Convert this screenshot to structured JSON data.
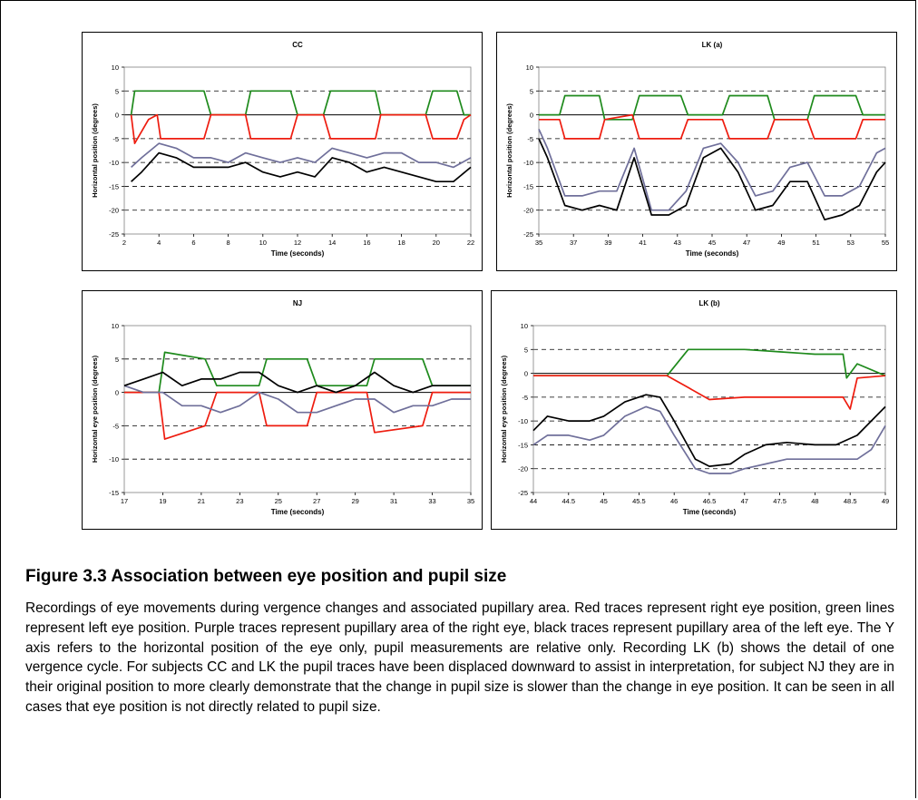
{
  "figure": {
    "title": "Figure 3.3  Association between eye position and pupil size",
    "caption": "Recordings of eye movements during vergence changes and associated pupillary area. Red traces represent right eye position, green lines represent left eye position. Purple traces represent pupillary area of the right eye, black traces represent pupillary area of the left eye. The Y axis refers to the horizontal position of the eye only, pupil measurements are relative only. Recording LK (b) shows the detail of one vergence cycle. For subjects CC and LK the pupil traces have been displaced downward to assist in interpretation, for subject NJ they are in their original position to more clearly demonstrate that the change in pupil size is slower than the change in eye position. It can be seen in all cases that eye position is not directly related to pupil size."
  },
  "colors": {
    "right_eye": "#ee1c0f",
    "left_eye": "#1e8a1c",
    "right_pupil": "#6f6f9a",
    "left_pupil": "#000000"
  },
  "chart_data": [
    {
      "type": "line",
      "title": "CC",
      "xlabel": "Time (seconds)",
      "ylabel": "Horizontal position (degrees)",
      "xlim": [
        2,
        22
      ],
      "ylim": [
        -25,
        10
      ],
      "xticks": [
        "2",
        "4",
        "6",
        "8",
        "10",
        "12",
        "14",
        "16",
        "18",
        "20",
        "22"
      ],
      "yticks": [
        "10",
        "5",
        "0",
        "-5",
        "-10",
        "-15",
        "-20",
        "-25"
      ],
      "grid": "dashed horizontal at 5, -5, -10, -15, -20; solid at 0",
      "series": [
        {
          "color": "#1e8a1c",
          "x": [
            2.4,
            2.6,
            3.2,
            3.8,
            4.0,
            6.6,
            7.0,
            9.0,
            9.3,
            11.6,
            12.0,
            13.5,
            13.9,
            16.5,
            16.8,
            19.4,
            19.8,
            21.2,
            21.6,
            22
          ],
          "y": [
            0,
            5,
            5,
            5,
            5,
            5,
            0,
            0,
            5,
            5,
            0,
            0,
            5,
            5,
            0,
            0,
            5,
            5,
            0,
            0
          ]
        },
        {
          "color": "#ee1c0f",
          "x": [
            2.4,
            2.6,
            3.4,
            3.9,
            4.1,
            6.6,
            7.0,
            9.0,
            9.3,
            11.6,
            12.0,
            13.5,
            13.9,
            16.5,
            16.8,
            19.4,
            19.8,
            21.2,
            21.6,
            22
          ],
          "y": [
            0,
            -6,
            -1,
            0,
            -5,
            -5,
            0,
            0,
            -5,
            -5,
            0,
            0,
            -5,
            -5,
            0,
            0,
            -5,
            -5,
            -1,
            0
          ]
        },
        {
          "color": "#6f6f9a",
          "x": [
            2.4,
            3.0,
            4.0,
            5.0,
            6.0,
            7.0,
            8.0,
            9.0,
            10.0,
            11.0,
            12.0,
            13.0,
            14.0,
            15.0,
            16.0,
            17.0,
            18.0,
            19.0,
            20.0,
            21.0,
            22.0
          ],
          "y": [
            -11,
            -9,
            -6,
            -7,
            -9,
            -9,
            -10,
            -8,
            -9,
            -10,
            -9,
            -10,
            -7,
            -8,
            -9,
            -8,
            -8,
            -10,
            -10,
            -11,
            -9
          ]
        },
        {
          "color": "#000000",
          "x": [
            2.4,
            3.0,
            4.0,
            5.0,
            6.0,
            7.0,
            8.0,
            9.0,
            10.0,
            11.0,
            12.0,
            13.0,
            14.0,
            15.0,
            16.0,
            17.0,
            18.0,
            19.0,
            20.0,
            21.0,
            22.0
          ],
          "y": [
            -14,
            -12,
            -8,
            -9,
            -11,
            -11,
            -11,
            -10,
            -12,
            -13,
            -12,
            -13,
            -9,
            -10,
            -12,
            -11,
            -12,
            -13,
            -14,
            -14,
            -11
          ]
        }
      ]
    },
    {
      "type": "line",
      "title": "LK  (a)",
      "xlabel": "Time (seconds)",
      "ylabel": "Horizontal position (degrees)",
      "xlim": [
        35,
        55
      ],
      "ylim": [
        -25,
        10
      ],
      "xticks": [
        "35",
        "37",
        "39",
        "41",
        "43",
        "45",
        "47",
        "49",
        "51",
        "53",
        "55"
      ],
      "yticks": [
        "10",
        "5",
        "0",
        "-5",
        "-10",
        "-15",
        "-20",
        "-25"
      ],
      "grid": "dashed horizontal at 5, -5, -10, -15, -20; solid at 0",
      "series": [
        {
          "color": "#1e8a1c",
          "x": [
            35,
            36.2,
            36.5,
            38.5,
            38.8,
            40.4,
            40.8,
            43.2,
            43.6,
            45.6,
            46.0,
            48.2,
            48.6,
            50.5,
            50.9,
            53.3,
            53.7,
            55
          ],
          "y": [
            0,
            0,
            4,
            4,
            -1,
            -1,
            4,
            4,
            0,
            0,
            4,
            4,
            -1,
            -1,
            4,
            4,
            0,
            0
          ]
        },
        {
          "color": "#ee1c0f",
          "x": [
            35,
            36.2,
            36.5,
            38.5,
            38.8,
            40.4,
            40.8,
            43.2,
            43.6,
            45.6,
            46.0,
            48.2,
            48.6,
            50.5,
            50.9,
            53.3,
            53.7,
            55
          ],
          "y": [
            -1,
            -1,
            -5,
            -5,
            -1,
            0,
            -5,
            -5,
            -1,
            -1,
            -5,
            -5,
            -1,
            -1,
            -5,
            -5,
            -1,
            -1
          ]
        },
        {
          "color": "#6f6f9a",
          "x": [
            35,
            35.5,
            36.5,
            37.5,
            38.5,
            39.5,
            40.5,
            41.5,
            42.5,
            43.5,
            44.5,
            45.5,
            46.5,
            47.5,
            48.5,
            49.5,
            50.5,
            51.5,
            52.5,
            53.5,
            54.5,
            55
          ],
          "y": [
            -3,
            -7,
            -17,
            -17,
            -16,
            -16,
            -7,
            -20,
            -20,
            -16,
            -7,
            -6,
            -10,
            -17,
            -16,
            -11,
            -10,
            -17,
            -17,
            -15,
            -8,
            -7
          ]
        },
        {
          "color": "#000000",
          "x": [
            35,
            35.5,
            36.5,
            37.5,
            38.5,
            39.5,
            40.5,
            41.5,
            42.5,
            43.5,
            44.5,
            45.5,
            46.5,
            47.5,
            48.5,
            49.5,
            50.5,
            51.5,
            52.5,
            53.5,
            54.5,
            55
          ],
          "y": [
            -5,
            -9,
            -19,
            -20,
            -19,
            -20,
            -9,
            -21,
            -21,
            -19,
            -9,
            -7,
            -12,
            -20,
            -19,
            -14,
            -14,
            -22,
            -21,
            -19,
            -12,
            -10
          ]
        }
      ]
    },
    {
      "type": "line",
      "title": "NJ",
      "xlabel": "Time (seconds)",
      "ylabel": "Horizontal eye position (degrees)",
      "xlim": [
        17,
        35
      ],
      "ylim": [
        -15,
        10
      ],
      "xticks": [
        "17",
        "19",
        "21",
        "23",
        "25",
        "27",
        "29",
        "31",
        "33",
        "35"
      ],
      "yticks": [
        "10",
        "5",
        "0",
        "-5",
        "-10",
        "-15"
      ],
      "grid": "dashed horizontal at 5, -5, -10; solid at 0",
      "series": [
        {
          "color": "#1e8a1c",
          "x": [
            17,
            18.8,
            19.1,
            21.2,
            21.8,
            24.0,
            24.4,
            26.5,
            27.0,
            29.6,
            30.0,
            32.5,
            33.0,
            35
          ],
          "y": [
            0,
            0,
            6,
            5,
            1,
            1,
            5,
            5,
            1,
            1,
            5,
            5,
            1,
            1
          ]
        },
        {
          "color": "#ee1c0f",
          "x": [
            17,
            18.8,
            19.1,
            21.2,
            21.8,
            24.0,
            24.4,
            26.5,
            27.0,
            29.6,
            30.0,
            32.5,
            33.0,
            35
          ],
          "y": [
            0,
            0,
            -7,
            -5,
            0,
            0,
            -5,
            -5,
            0,
            0,
            -6,
            -5,
            0,
            0
          ]
        },
        {
          "color": "#6f6f9a",
          "x": [
            17,
            18,
            19,
            20,
            21,
            22,
            23,
            24,
            25,
            26,
            27,
            28,
            29,
            30,
            31,
            32,
            33,
            34,
            35
          ],
          "y": [
            1,
            0,
            0,
            -2,
            -2,
            -3,
            -2,
            0,
            -1,
            -3,
            -3,
            -2,
            -1,
            -1,
            -3,
            -2,
            -2,
            -1,
            -1
          ]
        },
        {
          "color": "#000000",
          "x": [
            17,
            18,
            19,
            20,
            21,
            22,
            23,
            24,
            25,
            26,
            27,
            28,
            29,
            30,
            31,
            32,
            33,
            34,
            35
          ],
          "y": [
            1,
            2,
            3,
            1,
            2,
            2,
            3,
            3,
            1,
            0,
            1,
            0,
            1,
            3,
            1,
            0,
            1,
            1,
            1
          ]
        }
      ]
    },
    {
      "type": "line",
      "title": "LK (b)",
      "xlabel": "Time (seconds)",
      "ylabel": "Horizontal eye position (degrees)",
      "xlim": [
        44,
        49
      ],
      "ylim": [
        -25,
        10
      ],
      "xticks": [
        "44",
        "44.5",
        "45",
        "45.5",
        "46",
        "46.5",
        "47",
        "47.5",
        "48",
        "48.5",
        "49"
      ],
      "yticks": [
        "10",
        "5",
        "0",
        "-5",
        "-10",
        "-15",
        "-20",
        "-25"
      ],
      "grid": "dashed horizontal at 5, -5, -10, -15, -20; solid at 0",
      "series": [
        {
          "color": "#1e8a1c",
          "x": [
            44,
            45.9,
            46.2,
            47.0,
            47.5,
            48.0,
            48.4,
            48.45,
            48.6,
            49
          ],
          "y": [
            -0.5,
            -0.5,
            5,
            5,
            4.5,
            4,
            4,
            -1,
            2,
            -0.5
          ]
        },
        {
          "color": "#ee1c0f",
          "x": [
            44,
            45.9,
            46.2,
            46.5,
            47.0,
            47.5,
            48.0,
            48.4,
            48.5,
            48.6,
            49
          ],
          "y": [
            -0.5,
            -0.5,
            -3,
            -5.5,
            -5,
            -5,
            -5,
            -5,
            -7.5,
            -1,
            -0.5
          ]
        },
        {
          "color": "#6f6f9a",
          "x": [
            44,
            44.2,
            44.5,
            44.8,
            45.0,
            45.3,
            45.6,
            45.8,
            46.0,
            46.3,
            46.5,
            46.8,
            47.0,
            47.3,
            47.6,
            48.0,
            48.3,
            48.6,
            48.8,
            49
          ],
          "y": [
            -15,
            -13,
            -13,
            -14,
            -13,
            -9,
            -7,
            -8,
            -13,
            -20,
            -21,
            -21,
            -20,
            -19,
            -18,
            -18,
            -18,
            -18,
            -16,
            -11
          ]
        },
        {
          "color": "#000000",
          "x": [
            44,
            44.2,
            44.5,
            44.8,
            45.0,
            45.3,
            45.6,
            45.8,
            46.0,
            46.3,
            46.5,
            46.8,
            47.0,
            47.3,
            47.6,
            48.0,
            48.3,
            48.6,
            48.8,
            49
          ],
          "y": [
            -12,
            -9,
            -10,
            -10,
            -9,
            -6,
            -4.5,
            -5,
            -10,
            -18,
            -19.5,
            -19,
            -17,
            -15,
            -14.5,
            -15,
            -15,
            -13,
            -10,
            -7
          ]
        }
      ]
    }
  ]
}
